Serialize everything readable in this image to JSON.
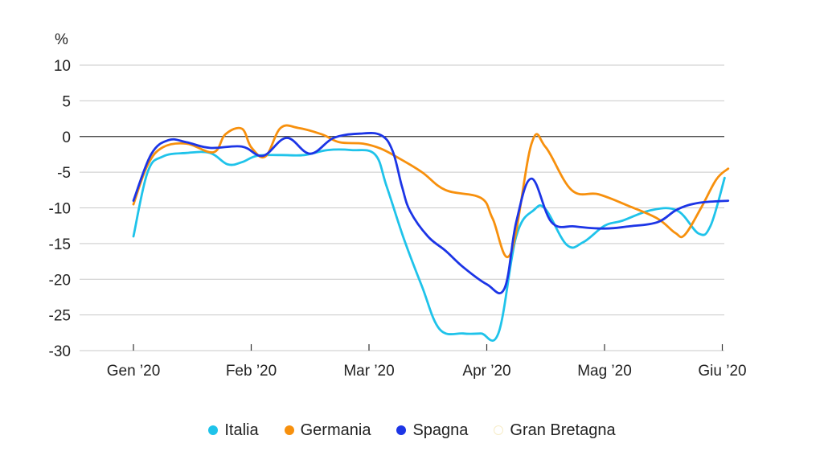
{
  "chart_data": {
    "type": "line",
    "unit_label": "%",
    "ylim": [
      -30,
      10
    ],
    "yticks": [
      10,
      5,
      0,
      -5,
      -10,
      -15,
      -20,
      -25,
      -30
    ],
    "ytick_labels": [
      "10",
      "5",
      "0",
      "-5",
      "-10",
      "-15",
      "-20",
      "-25",
      "-30"
    ],
    "xlim": [
      0,
      5.05
    ],
    "xticks": [
      {
        "pos": 0,
        "label": "Gen ’20"
      },
      {
        "pos": 1,
        "label": "Feb ’20"
      },
      {
        "pos": 2,
        "label": "Mar ’20"
      },
      {
        "pos": 3,
        "label": "Apr ’20"
      },
      {
        "pos": 4,
        "label": "Mag ’20"
      },
      {
        "pos": 5,
        "label": "Giu ’20"
      }
    ],
    "grid": true,
    "legend_position": "bottom",
    "series": [
      {
        "name": "Italia",
        "color": "#1fc3ea",
        "x": [
          0,
          0.12,
          0.25,
          0.45,
          0.65,
          0.8,
          0.92,
          1.05,
          1.25,
          1.45,
          1.65,
          1.85,
          2.05,
          2.15,
          2.3,
          2.45,
          2.6,
          2.8,
          2.95,
          3.1,
          3.25,
          3.4,
          3.5,
          3.68,
          3.82,
          4.0,
          4.15,
          4.4,
          4.62,
          4.8,
          4.9,
          5.02
        ],
        "values": [
          -14,
          -5,
          -2.8,
          -2.3,
          -2.3,
          -3.9,
          -3.6,
          -2.7,
          -2.6,
          -2.6,
          -1.9,
          -1.9,
          -2.5,
          -7,
          -14.5,
          -21,
          -27,
          -27.6,
          -27.6,
          -27.5,
          -14,
          -10.3,
          -10.2,
          -15.2,
          -14.8,
          -12.5,
          -11.8,
          -10.3,
          -10.4,
          -13.6,
          -12.5,
          -5.8
        ]
      },
      {
        "name": "Germania",
        "color": "#f7900d",
        "x": [
          0,
          0.12,
          0.25,
          0.45,
          0.68,
          0.78,
          0.92,
          1.0,
          1.12,
          1.25,
          1.4,
          1.6,
          1.75,
          1.95,
          2.1,
          2.25,
          2.45,
          2.65,
          2.95,
          3.05,
          3.2,
          3.38,
          3.5,
          3.72,
          3.95,
          4.2,
          4.45,
          4.6,
          4.68,
          4.82,
          4.95,
          5.05
        ],
        "values": [
          -9.5,
          -4,
          -1.5,
          -1.0,
          -2.2,
          0.3,
          1.1,
          -1.5,
          -2.8,
          1.2,
          1.2,
          0.3,
          -0.8,
          -1.0,
          -1.7,
          -3.0,
          -5.0,
          -7.5,
          -8.6,
          -11.5,
          -16.5,
          -1.0,
          -1.5,
          -7.5,
          -8.1,
          -9.7,
          -11.5,
          -13.5,
          -13.8,
          -10.0,
          -6.0,
          -4.5
        ]
      },
      {
        "name": "Spagna",
        "color": "#1c35e6",
        "x": [
          0,
          0.15,
          0.3,
          0.45,
          0.65,
          0.92,
          1.1,
          1.3,
          1.5,
          1.7,
          1.92,
          2.1,
          2.2,
          2.28,
          2.35,
          2.5,
          2.65,
          2.8,
          3.0,
          3.15,
          3.25,
          3.38,
          3.55,
          3.75,
          4.0,
          4.2,
          4.45,
          4.62,
          4.8,
          5.05
        ],
        "values": [
          -9,
          -2.5,
          -0.5,
          -0.8,
          -1.6,
          -1.4,
          -2.7,
          -0.2,
          -2.4,
          -0.2,
          0.4,
          0.2,
          -2.0,
          -7,
          -10.5,
          -14,
          -16,
          -18.3,
          -20.7,
          -21.3,
          -12,
          -5.9,
          -12,
          -12.6,
          -12.9,
          -12.6,
          -12.0,
          -10.2,
          -9.3,
          -9.0
        ]
      },
      {
        "name": "Gran Bretagna",
        "color": "#f7ecc6",
        "values": []
      }
    ]
  }
}
